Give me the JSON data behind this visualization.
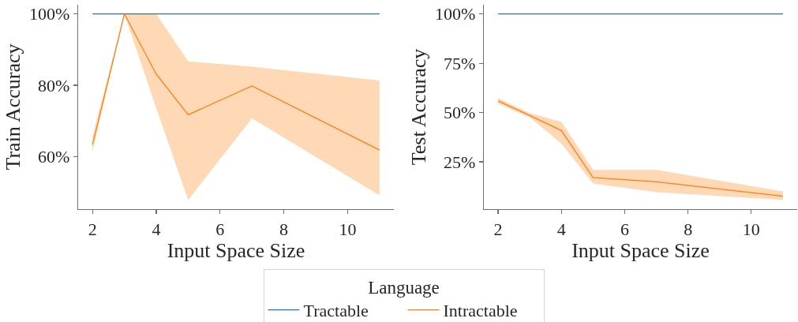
{
  "chart_data": [
    {
      "type": "line",
      "xlabel": "Input Space Size",
      "ylabel": "Train Accuracy",
      "x": [
        2,
        3,
        4,
        5,
        7,
        11
      ],
      "series": [
        {
          "name": "Tractable",
          "color": "#1f77b4",
          "values": [
            100,
            100,
            100,
            100,
            100,
            100
          ]
        },
        {
          "name": "Intractable",
          "color": "#ff7f0e",
          "values": [
            63.3,
            100,
            83.1,
            71.7,
            79.8,
            61.8
          ],
          "lower": [
            61.3,
            100,
            73.5,
            47.8,
            70.7,
            49.1
          ],
          "upper": [
            65.7,
            100,
            100,
            86.7,
            85.2,
            81.3
          ]
        }
      ],
      "xlim": [
        1.55,
        11.45
      ],
      "xticks": [
        2,
        4,
        6,
        8,
        10
      ],
      "ylim": [
        45.2,
        102.6
      ],
      "yticks": [
        {
          "value": 60,
          "label": "60%"
        },
        {
          "value": 80,
          "label": "80%"
        },
        {
          "value": 100,
          "label": "100%"
        }
      ],
      "grid": false,
      "legend": "bottom",
      "legend_title": "Language",
      "line_style": "solid"
    },
    {
      "type": "line",
      "xlabel": "Input Space Size",
      "ylabel": "Test Accuracy",
      "x": [
        2,
        3,
        4,
        5,
        7,
        11
      ],
      "series": [
        {
          "color": "#1f77b4",
          "values": [
            100,
            100,
            100,
            100,
            100,
            100
          ]
        },
        {
          "color": "#ff7f0e",
          "values": [
            55.9,
            48.5,
            40.9,
            17.0,
            14.9,
            7.6
          ],
          "lower": [
            54.6,
            47.5,
            34.2,
            14.0,
            9.6,
            5.7
          ],
          "upper": [
            57.3,
            49.7,
            45.3,
            20.9,
            20.9,
            10.0
          ]
        }
      ],
      "xlim": [
        1.55,
        11.45
      ],
      "xticks": [
        2,
        4,
        6,
        8,
        10
      ],
      "ylim": [
        1.0,
        104.7
      ],
      "yticks": [
        {
          "value": 25,
          "label": "25%"
        },
        {
          "value": 50,
          "label": "50%"
        },
        {
          "value": 75,
          "label": "75%"
        },
        {
          "value": 100,
          "label": "100%"
        }
      ],
      "grid": false,
      "line_style": "solid"
    }
  ]
}
